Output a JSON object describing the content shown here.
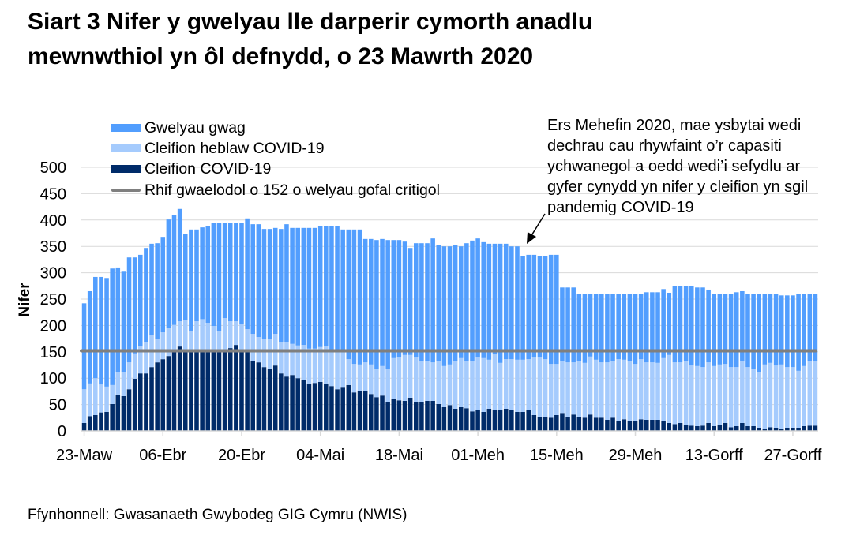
{
  "title": [
    "Siart 3 Nifer y gwelyau lle darperir cymorth anadlu",
    "mewnwthiol yn ôl defnydd, o 23 Mawrth 2020"
  ],
  "annotation": [
    "Ers Mehefin 2020, mae ysbytai wedi",
    "dechrau cau rhywfaint o’r capasiti",
    "ychwanegol a oedd wedi’i sefydlu ar",
    "gyfer cynydd yn nifer y cleifion yn sgil",
    "pandemig COVID-19"
  ],
  "source": "Ffynhonnell: Gwasanaeth Gwybodeg GIG Cymru (NWIS)",
  "colors": {
    "empty": "#529EFE",
    "non_covid": "#A5CBFD",
    "covid": "#002B69",
    "reference": "#7F7F7F",
    "grid": "#D9D9D9"
  },
  "chart_data": {
    "type": "bar",
    "stacked": true,
    "ylabel": "Nifer",
    "xlabel": "",
    "ylim": [
      0,
      500
    ],
    "yticks": [
      0,
      50,
      100,
      150,
      200,
      250,
      300,
      350,
      400,
      450,
      500
    ],
    "grid": true,
    "legend_position": "top-left",
    "x_tick_labels": [
      "23-Maw",
      "06-Ebr",
      "20-Ebr",
      "04-Mai",
      "18-Mai",
      "01-Meh",
      "15-Meh",
      "29-Meh",
      "13-Gorff",
      "27-Gorff"
    ],
    "categories": [
      "23-Maw",
      "24-Maw",
      "25-Maw",
      "26-Maw",
      "27-Maw",
      "28-Maw",
      "29-Maw",
      "30-Maw",
      "31-Maw",
      "01-Ebr",
      "02-Ebr",
      "03-Ebr",
      "04-Ebr",
      "05-Ebr",
      "06-Ebr",
      "07-Ebr",
      "08-Ebr",
      "09-Ebr",
      "10-Ebr",
      "11-Ebr",
      "12-Ebr",
      "13-Ebr",
      "14-Ebr",
      "15-Ebr",
      "16-Ebr",
      "17-Ebr",
      "18-Ebr",
      "19-Ebr",
      "20-Ebr",
      "21-Ebr",
      "22-Ebr",
      "23-Ebr",
      "24-Ebr",
      "25-Ebr",
      "26-Ebr",
      "27-Ebr",
      "28-Ebr",
      "29-Ebr",
      "30-Ebr",
      "01-Mai",
      "02-Mai",
      "03-Mai",
      "04-Mai",
      "05-Mai",
      "06-Mai",
      "07-Mai",
      "08-Mai",
      "09-Mai",
      "10-Mai",
      "11-Mai",
      "12-Mai",
      "13-Mai",
      "14-Mai",
      "15-Mai",
      "16-Mai",
      "17-Mai",
      "18-Mai",
      "19-Mai",
      "20-Mai",
      "21-Mai",
      "22-Mai",
      "23-Mai",
      "24-Mai",
      "25-Mai",
      "26-Mai",
      "27-Mai",
      "28-Mai",
      "29-Mai",
      "30-Mai",
      "31-Mai",
      "01-Meh",
      "02-Meh",
      "03-Meh",
      "04-Meh",
      "05-Meh",
      "06-Meh",
      "07-Meh",
      "08-Meh",
      "09-Meh",
      "10-Meh",
      "11-Meh",
      "12-Meh",
      "13-Meh",
      "14-Meh",
      "15-Meh",
      "16-Meh",
      "17-Meh",
      "18-Meh",
      "19-Meh",
      "20-Meh",
      "21-Meh",
      "22-Meh",
      "23-Meh",
      "24-Meh",
      "25-Meh",
      "26-Meh",
      "27-Meh",
      "28-Meh",
      "29-Meh",
      "30-Meh",
      "01-Gorff",
      "02-Gorff",
      "03-Gorff",
      "04-Gorff",
      "05-Gorff",
      "06-Gorff",
      "07-Gorff",
      "08-Gorff",
      "09-Gorff",
      "10-Gorff",
      "11-Gorff",
      "12-Gorff",
      "13-Gorff",
      "14-Gorff",
      "15-Gorff",
      "16-Gorff",
      "17-Gorff",
      "18-Gorff",
      "19-Gorff",
      "20-Gorff",
      "21-Gorff",
      "22-Gorff",
      "23-Gorff",
      "24-Gorff",
      "25-Gorff",
      "26-Gorff",
      "27-Gorff",
      "28-Gorff",
      "29-Gorff",
      "30-Gorff",
      "31-Gorff"
    ],
    "series": [
      {
        "name": "Cleifion COVID-19",
        "key": "covid",
        "values": [
          15,
          28,
          30,
          35,
          36,
          51,
          69,
          66,
          79,
          99,
          109,
          109,
          121,
          130,
          136,
          142,
          150,
          160,
          150,
          150,
          150,
          150,
          150,
          150,
          150,
          150,
          157,
          163,
          150,
          150,
          133,
          130,
          121,
          118,
          124,
          109,
          103,
          106,
          100,
          97,
          90,
          91,
          93,
          90,
          85,
          79,
          82,
          87,
          73,
          76,
          75,
          70,
          64,
          67,
          54,
          60,
          58,
          57,
          63,
          54,
          55,
          57,
          57,
          51,
          45,
          49,
          42,
          45,
          43,
          37,
          40,
          36,
          42,
          40,
          40,
          42,
          39,
          36,
          36,
          39,
          30,
          27,
          27,
          25,
          30,
          34,
          27,
          31,
          27,
          25,
          31,
          25,
          25,
          21,
          25,
          19,
          22,
          19,
          19,
          22,
          21,
          21,
          21,
          18,
          15,
          13,
          15,
          12,
          10,
          9,
          10,
          15,
          9,
          12,
          15,
          7,
          9,
          15,
          9,
          9,
          6,
          4,
          7,
          6,
          4,
          6,
          6,
          6,
          9,
          10,
          10
        ]
      },
      {
        "name": "Cleifion heblaw COVID-19",
        "key": "non_covid",
        "values": [
          64,
          62,
          70,
          53,
          48,
          36,
          42,
          46,
          51,
          48,
          51,
          59,
          60,
          44,
          51,
          54,
          51,
          48,
          61,
          39,
          58,
          62,
          55,
          49,
          40,
          64,
          51,
          45,
          52,
          43,
          51,
          48,
          53,
          56,
          60,
          60,
          66,
          59,
          62,
          66,
          66,
          65,
          66,
          70,
          67,
          73,
          68,
          49,
          54,
          50,
          55,
          56,
          54,
          56,
          64,
          78,
          81,
          87,
          81,
          85,
          78,
          76,
          73,
          81,
          78,
          77,
          90,
          93,
          90,
          96,
          99,
          102,
          93,
          105,
          89,
          94,
          97,
          99,
          99,
          97,
          109,
          112,
          109,
          102,
          97,
          99,
          103,
          99,
          106,
          104,
          110,
          110,
          105,
          109,
          108,
          117,
          113,
          114,
          108,
          114,
          109,
          109,
          108,
          120,
          129,
          117,
          115,
          121,
          114,
          114,
          111,
          115,
          114,
          114,
          112,
          114,
          112,
          118,
          112,
          109,
          106,
          122,
          122,
          118,
          122,
          115,
          115,
          108,
          114,
          123,
          123
        ]
      },
      {
        "name": "Gwelyau gwag",
        "key": "empty",
        "values": [
          163,
          175,
          192,
          204,
          206,
          221,
          199,
          190,
          199,
          182,
          174,
          179,
          174,
          182,
          181,
          205,
          208,
          213,
          162,
          193,
          174,
          174,
          183,
          195,
          204,
          180,
          186,
          186,
          192,
          210,
          208,
          214,
          209,
          209,
          201,
          214,
          223,
          220,
          223,
          222,
          229,
          229,
          230,
          229,
          237,
          237,
          232,
          246,
          255,
          256,
          234,
          238,
          244,
          241,
          244,
          224,
          223,
          215,
          203,
          217,
          223,
          223,
          235,
          220,
          227,
          224,
          221,
          212,
          223,
          228,
          226,
          220,
          220,
          210,
          226,
          219,
          214,
          215,
          197,
          198,
          195,
          193,
          196,
          207,
          207,
          139,
          142,
          142,
          127,
          131,
          119,
          125,
          130,
          130,
          127,
          124,
          125,
          127,
          133,
          124,
          133,
          133,
          134,
          131,
          118,
          144,
          144,
          141,
          150,
          149,
          151,
          138,
          137,
          134,
          133,
          138,
          142,
          132,
          138,
          142,
          147,
          134,
          131,
          136,
          131,
          136,
          136,
          145,
          136,
          126,
          126
        ]
      }
    ],
    "reference_line": {
      "name": "Rhif gwaelodol o 152 o welyau gofal critigol",
      "value": 152
    },
    "legend": [
      "Gwelyau gwag",
      "Cleifion heblaw COVID-19",
      "Cleifion COVID-19",
      "Rhif gwaelodol o 152 o welyau gofal critigol"
    ]
  }
}
